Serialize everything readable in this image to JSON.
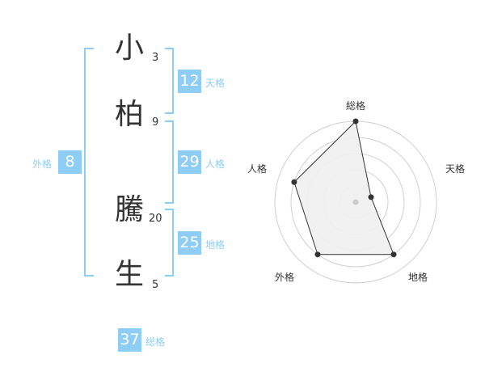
{
  "name": {
    "characters": [
      {
        "char": "小",
        "strokes": "3"
      },
      {
        "char": "柏",
        "strokes": "9"
      },
      {
        "char": "騰",
        "strokes": "20"
      },
      {
        "char": "生",
        "strokes": "5"
      }
    ]
  },
  "kaku": {
    "tenkaku": {
      "value": "12",
      "label": "天格"
    },
    "jinkaku": {
      "value": "29",
      "label": "人格"
    },
    "chikaku": {
      "value": "25",
      "label": "地格"
    },
    "gaikaku": {
      "value": "8",
      "label": "外格"
    },
    "soukaku": {
      "value": "37",
      "label": "総格"
    }
  },
  "colors": {
    "accent": "#8dcdf6",
    "radar_fill": "#f0f0f0",
    "radar_line": "#333333"
  },
  "chart_data": {
    "type": "radar",
    "axes": [
      "総格",
      "天格",
      "地格",
      "外格",
      "人格"
    ],
    "values": [
      5,
      1,
      4,
      4,
      4
    ],
    "range": [
      0,
      5
    ],
    "rings": 5
  }
}
